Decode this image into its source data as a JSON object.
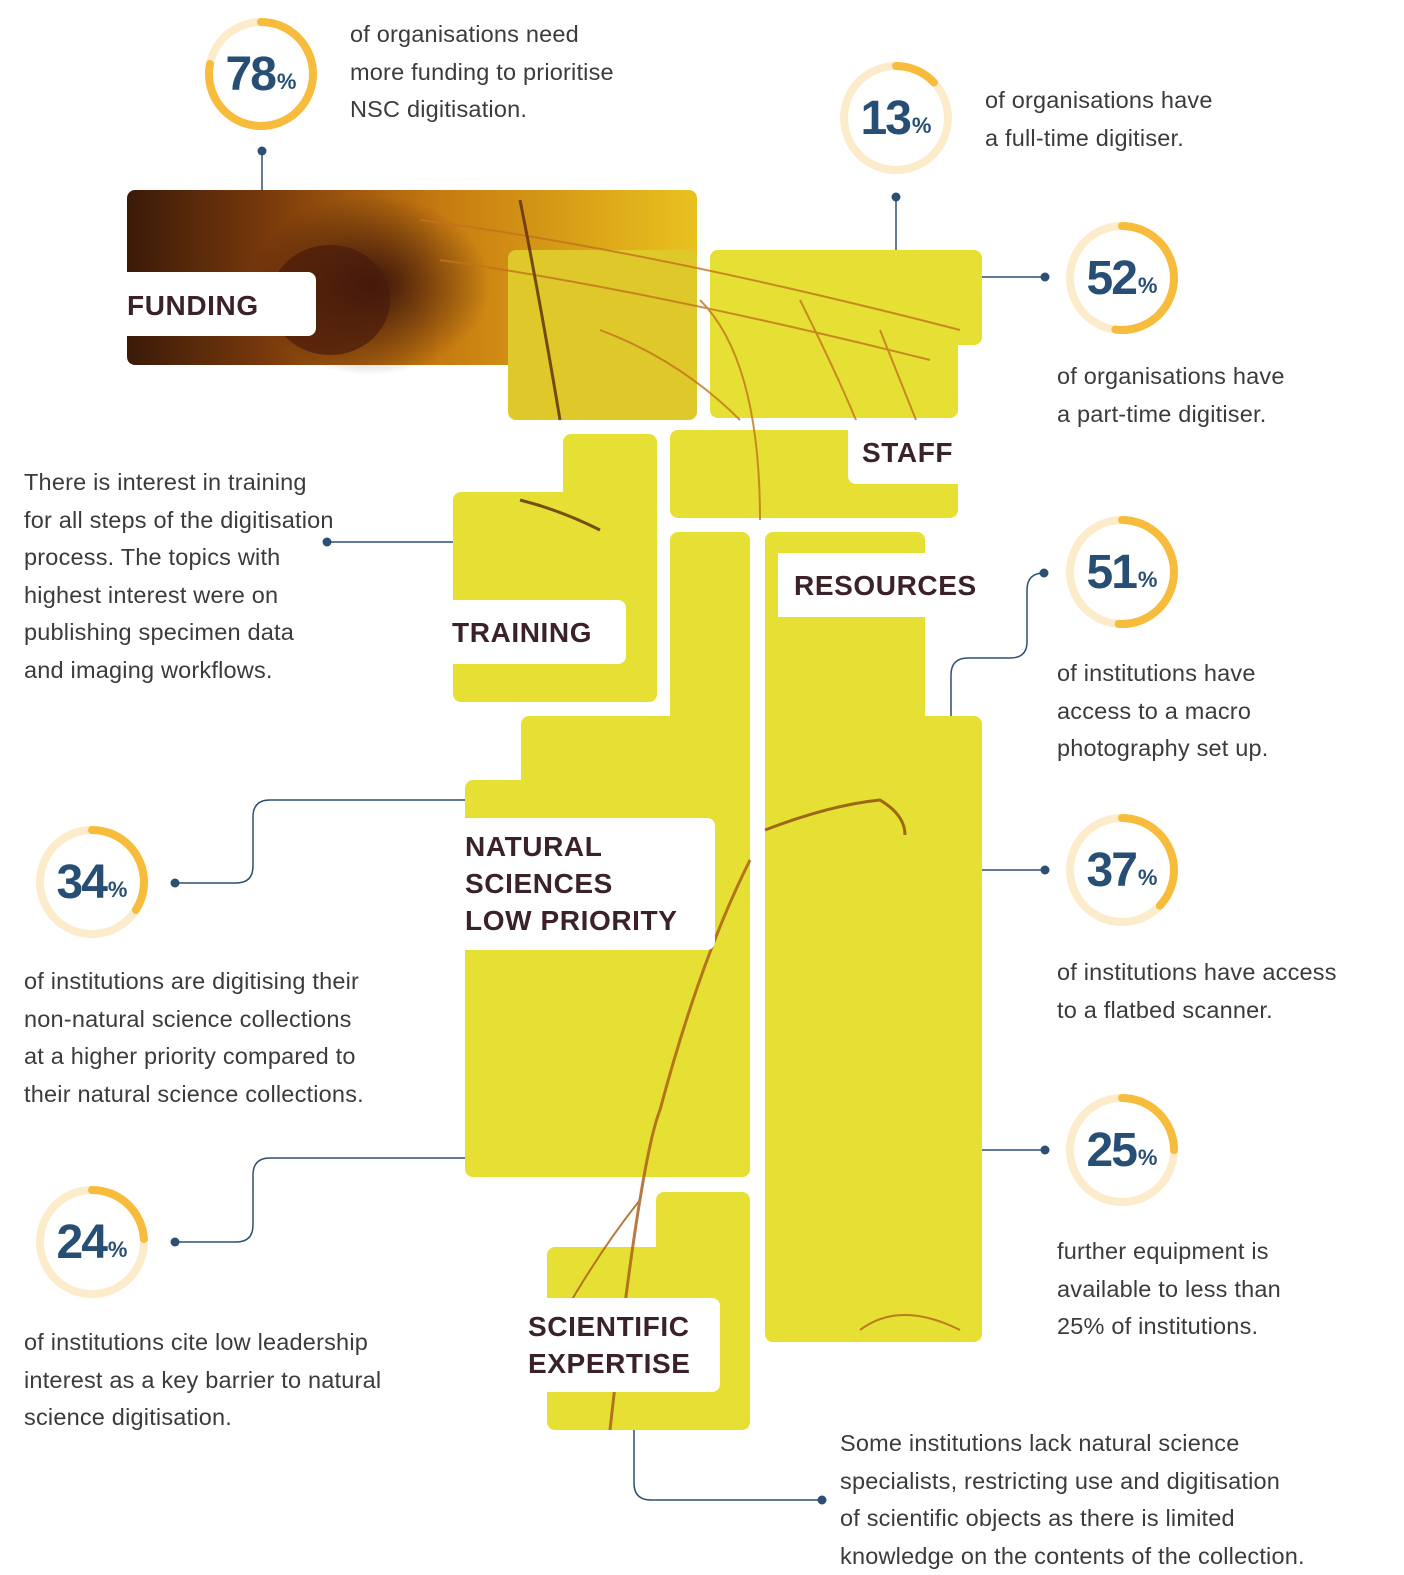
{
  "colors": {
    "accent": "#f7bc3c",
    "ring_track": "#fdeccb",
    "number": "#274e75",
    "connector": "#2d4f74",
    "block": "#e6e034",
    "label": "#3b2228",
    "text": "#3b3b3b"
  },
  "pct_symbol": "%",
  "stats": {
    "funding": {
      "value": 78,
      "caption": [
        "of organisations need",
        "more funding to prioritise",
        "NSC digitisation."
      ]
    },
    "fulltime": {
      "value": 13,
      "caption": [
        "of organisations have",
        "a full-time digitiser."
      ]
    },
    "parttime": {
      "value": 52,
      "caption": [
        "of organisations have",
        "a part-time digitiser."
      ]
    },
    "macro": {
      "value": 51,
      "caption": [
        "of institutions have",
        "access to a macro",
        "photography set up."
      ]
    },
    "flatbed": {
      "value": 37,
      "caption": [
        "of institutions have access",
        "to a flatbed scanner."
      ]
    },
    "further": {
      "value": 25,
      "caption": [
        "further equipment is",
        "available to less than",
        "25% of institutions."
      ]
    },
    "non_natural": {
      "value": 34,
      "caption": [
        "of institutions are digitising their",
        "non-natural science collections",
        "at a higher priority compared to",
        "their natural science collections."
      ]
    },
    "leadership": {
      "value": 24,
      "caption": [
        "of institutions cite low leadership",
        "interest as a key barrier to natural",
        "science digitisation."
      ]
    }
  },
  "training_text": [
    "There is interest in training",
    "for all steps of the digitisation",
    "process. The topics with",
    "highest interest were on",
    "publishing specimen data",
    "and imaging workflows."
  ],
  "expertise_text": [
    "Some institutions lack natural science",
    "specialists, restricting use and digitisation",
    "of scientific objects as there is limited",
    "knowledge on the contents of the collection."
  ],
  "labels": {
    "funding": "FUNDING",
    "staff": "STAFF",
    "training": "TRAINING",
    "resources": "RESOURCES",
    "natural": [
      "NATURAL",
      "SCIENCES",
      "LOW PRIORITY"
    ],
    "scientific": [
      "SCIENTIFIC",
      "EXPERTISE"
    ]
  }
}
